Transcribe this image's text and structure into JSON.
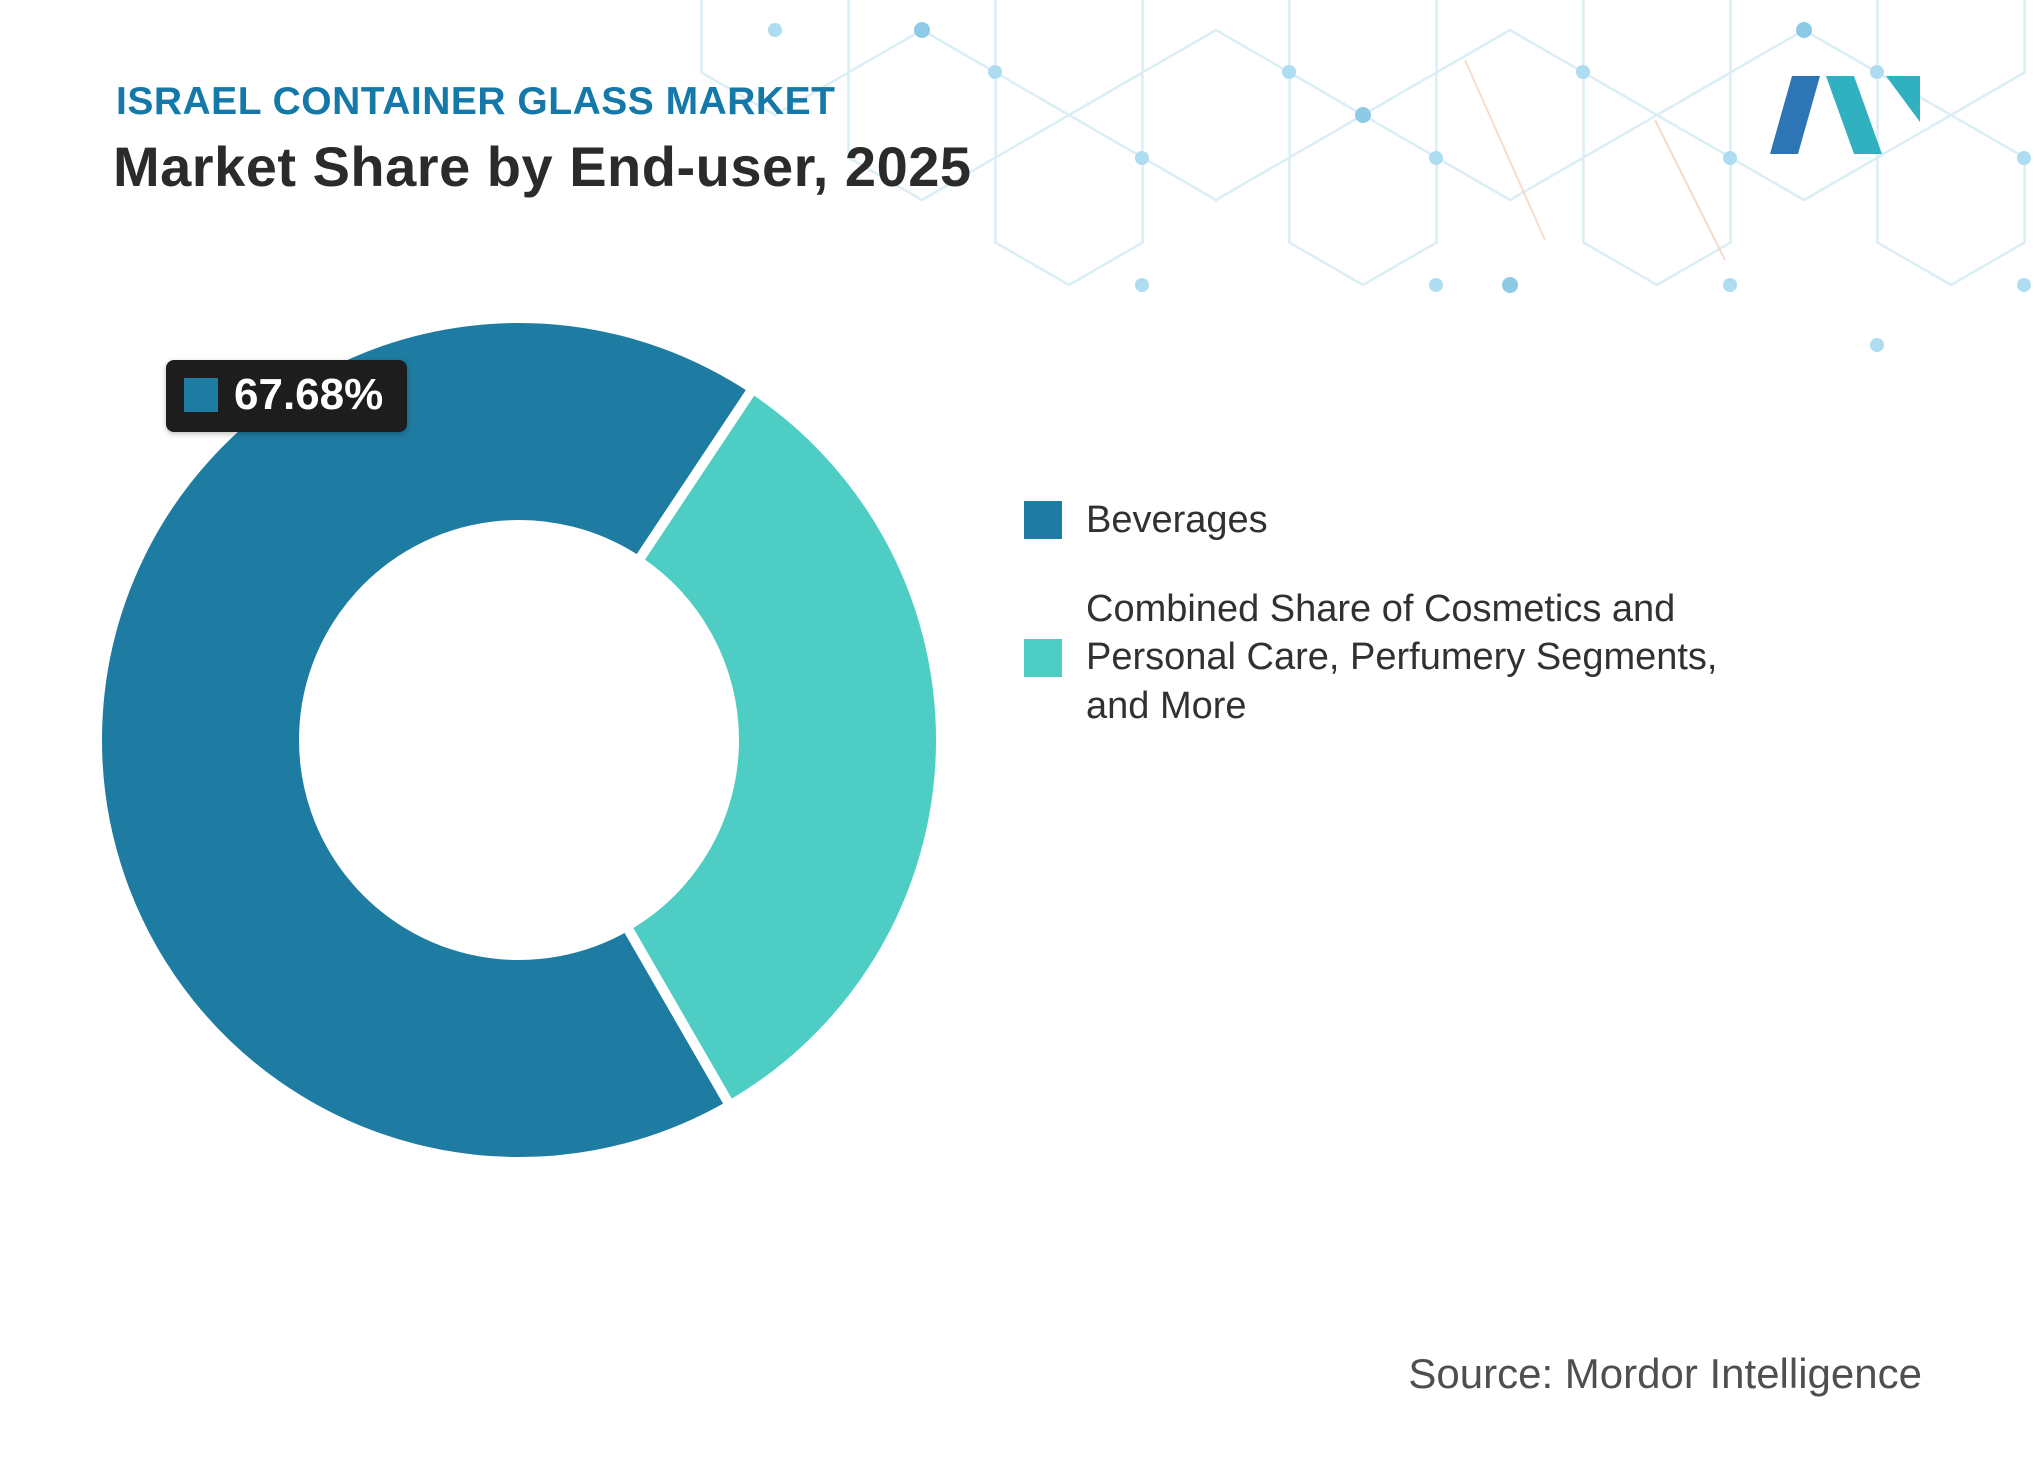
{
  "header": {
    "eyebrow": "ISRAEL CONTAINER GLASS MARKET",
    "title": "Market Share by End-user, 2025"
  },
  "chart_data": {
    "type": "pie",
    "subtype": "donut",
    "title": "Israel Container Glass Market - Market Share by End-user, 2025",
    "slices": [
      {
        "label": "Beverages",
        "value": 67.68,
        "color": "#1e7ba1"
      },
      {
        "label": "Combined Share of Cosmetics and Personal Care, Perfumery Segments, and More",
        "value": 32.32,
        "color": "#4ecdc4"
      }
    ],
    "units": "%",
    "start_angle_deg": 150,
    "inner_radius_ratio": 0.5,
    "slice_gap_color": "#ffffff",
    "data_labels": [
      "67.68%"
    ],
    "legend_position": "right"
  },
  "callout": {
    "value": "67.68%",
    "swatch_color": "#1e7ba1"
  },
  "legend": {
    "items": [
      {
        "label": "Beverages",
        "color": "#1e7ba1"
      },
      {
        "label": "Combined Share of Cosmetics and Personal Care, Perfumery Segments, and More",
        "color": "#4ecdc4"
      }
    ]
  },
  "footer": {
    "source": "Source: Mordor Intelligence"
  },
  "logo": {
    "name": "mordor-intelligence-logo",
    "blue": "#2e75b5",
    "teal": "#31b1c0"
  },
  "decoration": {
    "hex_stroke": "#dbeef6",
    "dot_fill": "#aedcf0",
    "dot_fill_strong": "#8ccae6",
    "accent_line": "#f3c9b1"
  }
}
